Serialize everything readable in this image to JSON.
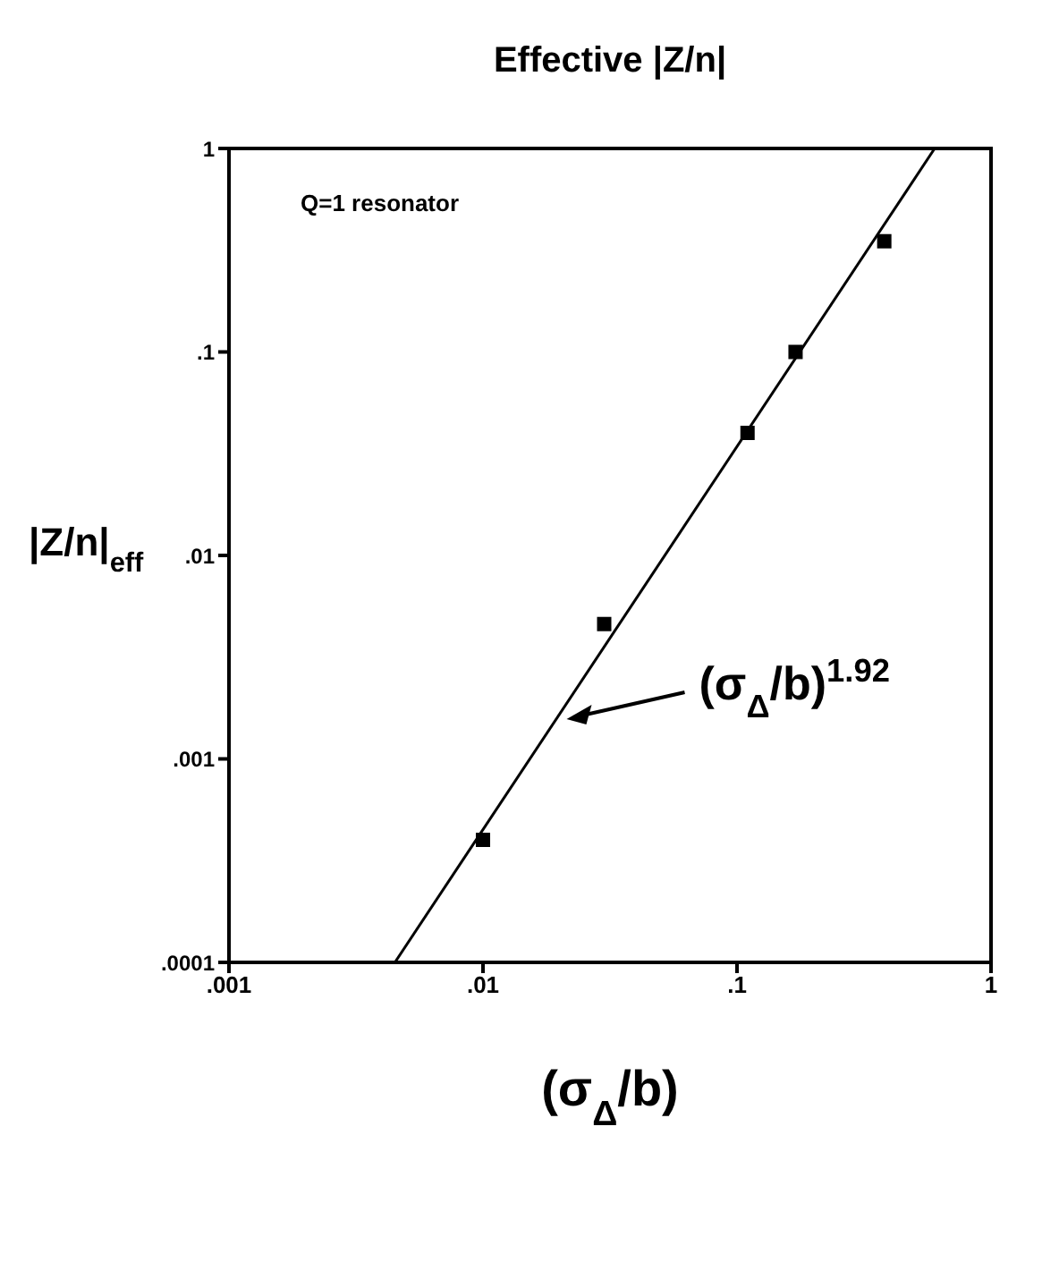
{
  "chart_data": {
    "type": "scatter",
    "title": "Effective |Z/n|",
    "xlabel": "(σ$_{Δ}$/b)",
    "ylabel": "|Z/n|$_{eff}$",
    "log": "xy",
    "xlim": [
      0.001,
      1
    ],
    "ylim": [
      0.0001,
      1
    ],
    "xticks": [
      {
        "value": 0.001,
        "label": ".001"
      },
      {
        "value": 0.01,
        "label": ".01"
      },
      {
        "value": 0.1,
        "label": ".1"
      },
      1
    ],
    "yticks": [
      {
        "value": 0.0001,
        "label": ".0001"
      },
      {
        "value": 0.001,
        "label": ".001"
      },
      {
        "value": 0.01,
        "label": ".01"
      },
      {
        "value": 0.1,
        "label": ".1"
      },
      1
    ],
    "series": [
      {
        "color": "#000000",
        "marker": "square",
        "x": [
          0.01,
          0.03,
          0.11,
          0.17,
          0.38
        ],
        "values": [
          0.0004,
          0.0046,
          0.04,
          0.1,
          0.35
        ]
      },
      {
        "type": "line",
        "color": "#000000",
        "x": [
          0.0045,
          0.6
        ],
        "values": [
          0.0001,
          1
        ]
      }
    ],
    "annotations": [
      "Q=1 resonator",
      {
        "text": "(σ$_{Δ}$/b)$^{1.92}$",
        "x": 0.02,
        "y": 0.0016
      }
    ]
  }
}
